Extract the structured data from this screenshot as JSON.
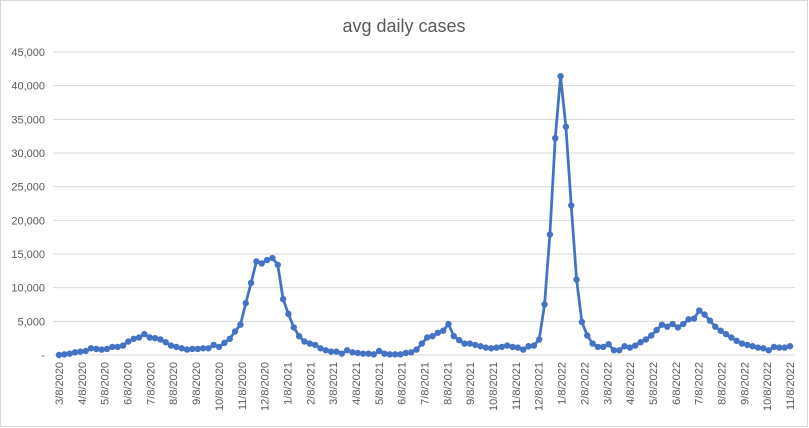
{
  "chart_data": {
    "type": "line",
    "title": "avg daily cases",
    "xlabel": "",
    "ylabel": "",
    "ylim": [
      0,
      45000
    ],
    "y_ticks": [
      {
        "value": 0,
        "label": "-"
      },
      {
        "value": 5000,
        "label": "5,000"
      },
      {
        "value": 10000,
        "label": "10,000"
      },
      {
        "value": 15000,
        "label": "15,000"
      },
      {
        "value": 20000,
        "label": "20,000"
      },
      {
        "value": 25000,
        "label": "25,000"
      },
      {
        "value": 30000,
        "label": "30,000"
      },
      {
        "value": 35000,
        "label": "35,000"
      },
      {
        "value": 40000,
        "label": "40,000"
      },
      {
        "value": 45000,
        "label": "45,000"
      }
    ],
    "x_tick_labels": [
      "3/8/2020",
      "4/8/2020",
      "5/8/2020",
      "6/8/2020",
      "7/8/2020",
      "8/8/2020",
      "9/8/2020",
      "10/8/2020",
      "11/8/2020",
      "12/8/2020",
      "1/8/2021",
      "2/8/2021",
      "3/8/2021",
      "4/8/2021",
      "5/8/2021",
      "6/8/2021",
      "7/8/2021",
      "8/8/2021",
      "9/8/2021",
      "10/8/2021",
      "11/8/2021",
      "12/8/2021",
      "1/8/2022",
      "2/8/2022",
      "3/8/2022",
      "4/8/2022",
      "5/8/2022",
      "6/8/2022",
      "7/8/2022",
      "8/8/2022",
      "9/8/2022",
      "10/8/2022",
      "11/8/2022"
    ],
    "grid": true,
    "legend": "none",
    "colors": {
      "series": "#4472c4",
      "grid": "#d9d9d9",
      "text": "#595959"
    },
    "series": [
      {
        "values": [
          0,
          100,
          200,
          400,
          500,
          600,
          1000,
          900,
          800,
          900,
          1200,
          1200,
          1400,
          2000,
          2400,
          2600,
          3100,
          2600,
          2500,
          2300,
          1900,
          1400,
          1200,
          1000,
          800,
          900,
          900,
          1000,
          1000,
          1500,
          1200,
          1800,
          2400,
          3500,
          4500,
          7700,
          10700,
          13900,
          13600,
          14100,
          14400,
          13400,
          8300,
          6100,
          4100,
          2800,
          2000,
          1700,
          1500,
          1000,
          700,
          500,
          500,
          200,
          700,
          400,
          300,
          200,
          200,
          100,
          600,
          200,
          100,
          100,
          100,
          300,
          400,
          800,
          1700,
          2600,
          2800,
          3300,
          3600,
          4600,
          2800,
          2200,
          1700,
          1700,
          1500,
          1300,
          1100,
          1000,
          1100,
          1200,
          1400,
          1200,
          1100,
          800,
          1300,
          1400,
          2300,
          7500,
          17900,
          32200,
          41400,
          33900,
          22200,
          11200,
          4900,
          2900,
          1700,
          1200,
          1200,
          1600,
          700,
          700,
          1300,
          1100,
          1400,
          1900,
          2300,
          2900,
          3700,
          4500,
          4200,
          4600,
          4100,
          4600,
          5300,
          5400,
          6600,
          6000,
          5100,
          4200,
          3600,
          3100,
          2600,
          2100,
          1700,
          1500,
          1300,
          1100,
          1000,
          700,
          1200,
          1100,
          1100,
          1300
        ]
      }
    ]
  }
}
